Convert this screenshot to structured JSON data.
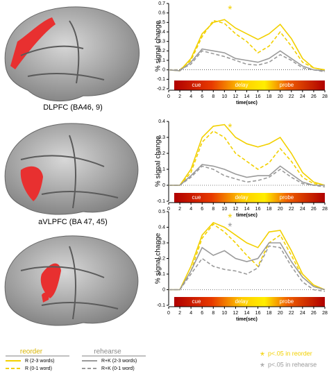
{
  "chart_data": [
    {
      "type": "line",
      "caption": "DLPFC (BA46, 9)",
      "y_label": "% signal change",
      "x_label": "time(sec)",
      "x": [
        0,
        2,
        4,
        6,
        8,
        10,
        12,
        14,
        16,
        18,
        20,
        22,
        24,
        26,
        28
      ],
      "xlim": [
        0,
        28
      ],
      "xticks": [
        0,
        2,
        4,
        6,
        8,
        10,
        12,
        14,
        16,
        18,
        20,
        22,
        24,
        26,
        28
      ],
      "ylim": [
        -0.2,
        0.7
      ],
      "yticks": [
        -0.2,
        -0.1,
        0,
        0.1,
        0.2,
        0.3,
        0.4,
        0.5,
        0.6,
        0.7
      ],
      "phases": [
        "cue",
        "delay",
        "probe"
      ],
      "annotations": [
        {
          "text": "*",
          "color": "#f2d000"
        }
      ],
      "series": [
        {
          "name": "R (2-3 words)",
          "color": "#f2d000",
          "dash": false,
          "values": [
            0,
            -0.01,
            0.12,
            0.38,
            0.5,
            0.53,
            0.44,
            0.38,
            0.32,
            0.38,
            0.48,
            0.33,
            0.12,
            0.02,
            0
          ]
        },
        {
          "name": "R (0-1 word)",
          "color": "#f2d000",
          "dash": true,
          "values": [
            0,
            0,
            0.1,
            0.35,
            0.52,
            0.49,
            0.38,
            0.3,
            0.18,
            0.25,
            0.4,
            0.25,
            0.08,
            0.02,
            0
          ]
        },
        {
          "name": "R+K (2-3 words)",
          "color": "#9a9a9a",
          "dash": false,
          "values": [
            0,
            -0.01,
            0.08,
            0.22,
            0.2,
            0.18,
            0.12,
            0.1,
            0.08,
            0.12,
            0.2,
            0.12,
            0.04,
            0,
            -0.01
          ]
        },
        {
          "name": "R+K (0-1 word)",
          "color": "#9a9a9a",
          "dash": true,
          "values": [
            0,
            0,
            0.06,
            0.2,
            0.17,
            0.14,
            0.1,
            0.06,
            0.05,
            0.08,
            0.16,
            0.1,
            0.02,
            0,
            -0.02
          ]
        }
      ]
    },
    {
      "type": "line",
      "caption": "aVLPFC (BA 47, 45)",
      "y_label": "% signal change",
      "x_label": "time(sec)",
      "x": [
        0,
        2,
        4,
        6,
        8,
        10,
        12,
        14,
        16,
        18,
        20,
        22,
        24,
        26,
        28
      ],
      "xlim": [
        0,
        28
      ],
      "xticks": [
        0,
        2,
        4,
        6,
        8,
        10,
        12,
        14,
        16,
        18,
        20,
        22,
        24,
        26,
        28
      ],
      "ylim": [
        -0.1,
        0.4
      ],
      "yticks": [
        -0.1,
        0,
        0.1,
        0.2,
        0.3,
        0.4
      ],
      "phases": [
        "cue",
        "delay",
        "probe"
      ],
      "annotations": [
        {
          "text": "*",
          "color": "#f2d000"
        }
      ],
      "series": [
        {
          "color": "#f2d000",
          "dash": false,
          "values": [
            0,
            0,
            0.1,
            0.3,
            0.37,
            0.38,
            0.3,
            0.26,
            0.24,
            0.26,
            0.3,
            0.2,
            0.08,
            0.02,
            0
          ]
        },
        {
          "color": "#f2d000",
          "dash": true,
          "values": [
            0,
            0,
            0.08,
            0.27,
            0.34,
            0.3,
            0.2,
            0.15,
            0.1,
            0.14,
            0.23,
            0.15,
            0.05,
            0.01,
            0
          ]
        },
        {
          "color": "#9a9a9a",
          "dash": false,
          "values": [
            0,
            0,
            0.06,
            0.13,
            0.12,
            0.1,
            0.07,
            0.05,
            0.06,
            0.06,
            0.12,
            0.07,
            0.02,
            0,
            0
          ]
        },
        {
          "color": "#9a9a9a",
          "dash": true,
          "values": [
            0,
            0,
            0.05,
            0.12,
            0.1,
            0.06,
            0.04,
            0.02,
            0.03,
            0.05,
            0.1,
            0.05,
            0.01,
            0,
            -0.01
          ]
        }
      ]
    },
    {
      "type": "line",
      "y_label": "% signal change",
      "x_label": "time(sec)",
      "x": [
        0,
        2,
        4,
        6,
        8,
        10,
        12,
        14,
        16,
        18,
        20,
        22,
        24,
        26,
        28
      ],
      "xlim": [
        0,
        28
      ],
      "xticks": [
        0,
        2,
        4,
        6,
        8,
        10,
        12,
        14,
        16,
        18,
        20,
        22,
        24,
        26,
        28
      ],
      "ylim": [
        -0.1,
        0.5
      ],
      "yticks": [
        -0.1,
        0,
        0.1,
        0.2,
        0.3,
        0.4,
        0.5
      ],
      "phases": [
        "cue",
        "delay",
        "probe"
      ],
      "annotations": [
        {
          "text": "*",
          "color": "#f2d000"
        },
        {
          "text": "*",
          "color": "#9a9a9a"
        }
      ],
      "series": [
        {
          "color": "#f2d000",
          "dash": false,
          "values": [
            0,
            0,
            0.15,
            0.35,
            0.43,
            0.4,
            0.35,
            0.3,
            0.27,
            0.37,
            0.38,
            0.25,
            0.1,
            0.03,
            0
          ]
        },
        {
          "color": "#f2d000",
          "dash": true,
          "values": [
            0,
            0,
            0.12,
            0.33,
            0.42,
            0.37,
            0.3,
            0.22,
            0.15,
            0.3,
            0.35,
            0.22,
            0.08,
            0.02,
            0
          ]
        },
        {
          "color": "#9a9a9a",
          "dash": false,
          "values": [
            0,
            0,
            0.12,
            0.27,
            0.22,
            0.25,
            0.2,
            0.18,
            0.2,
            0.3,
            0.3,
            0.18,
            0.08,
            0.02,
            0
          ]
        },
        {
          "color": "#9a9a9a",
          "dash": true,
          "values": [
            0,
            0,
            0.1,
            0.2,
            0.15,
            0.13,
            0.12,
            0.1,
            0.14,
            0.28,
            0.27,
            0.15,
            0.05,
            0,
            -0.01
          ]
        }
      ]
    }
  ],
  "legend_groups": [
    {
      "text": "reorder",
      "color": "#d8b400"
    },
    {
      "text": "rehearse",
      "color": "#888888"
    }
  ],
  "footnotes": [
    {
      "marker": "*",
      "text": "p<.05 in reorder",
      "color": "#f2d000"
    },
    {
      "marker": "*",
      "text": "p<.05 in rehearse",
      "color": "#9a9a9a"
    }
  ]
}
